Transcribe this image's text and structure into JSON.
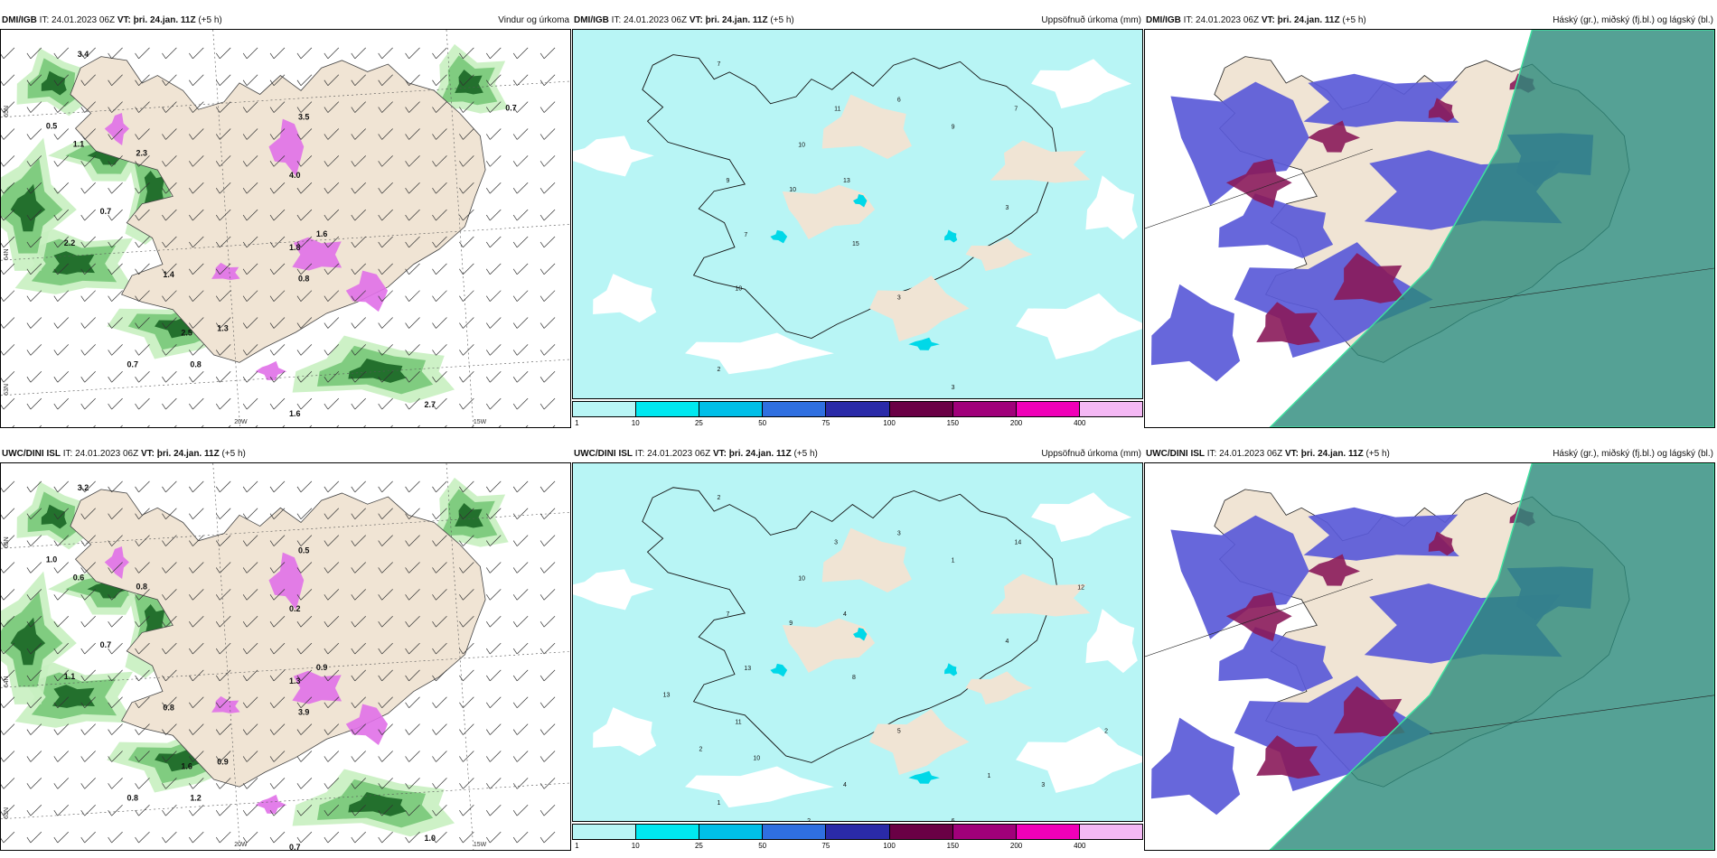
{
  "panels": [
    {
      "id": "p1",
      "model": "DMI/IGB",
      "it_label": "IT:",
      "it_value": "24.01.2023 06Z",
      "vt_label": "VT:",
      "vt_value": "þri. 24.jan. 11Z",
      "lead": "(+5 h)",
      "product": "Vindur og úrkoma",
      "type": "wind",
      "lat_labels": [
        "65N",
        "64N",
        "63N"
      ],
      "lon_labels": [
        "20W",
        "15W"
      ],
      "values": [
        "3.4",
        "0.5",
        "1.1",
        "4.0",
        "3.5",
        "2.3",
        "0.7",
        "2.2",
        "1.4",
        "1.8",
        "1.6",
        "0.8",
        "2.5",
        "0.7",
        "0.8",
        "1.3",
        "2.7",
        "1.6",
        "0.7"
      ]
    },
    {
      "id": "p2",
      "model": "DMI/IGB",
      "it_label": "IT:",
      "it_value": "24.01.2023 06Z",
      "vt_label": "VT:",
      "vt_value": "þri. 24.jan. 11Z",
      "lead": "(+5 h)",
      "product": "Uppsöfnuð úrkoma (mm)",
      "type": "accum",
      "values": [
        "7",
        "11",
        "6",
        "9",
        "10",
        "13",
        "9",
        "10",
        "7",
        "15",
        "10",
        "3",
        "3",
        "2",
        "3",
        "7"
      ]
    },
    {
      "id": "p3",
      "model": "DMI/IGB",
      "it_label": "IT:",
      "it_value": "24.01.2023 06Z",
      "vt_label": "VT:",
      "vt_value": "þri. 24.jan. 11Z",
      "lead": "(+5 h)",
      "product": "Háský (gr.), miðský (fj.bl.) og lágský (bl.)",
      "type": "cloud"
    },
    {
      "id": "p4",
      "model": "UWC/DINI ISL",
      "it_label": "IT:",
      "it_value": "24.01.2023 06Z",
      "vt_label": "VT:",
      "vt_value": "þri. 24.jan. 11Z",
      "lead": "(+5 h)",
      "product": "",
      "type": "wind",
      "lat_labels": [
        "65N",
        "64N",
        "63N"
      ],
      "lon_labels": [
        "20W",
        "15W"
      ],
      "values": [
        "3.2",
        "1.0",
        "0.6",
        "0.2",
        "0.5",
        "0.8",
        "0.7",
        "1.1",
        "0.8",
        "1.3",
        "0.9",
        "3.9",
        "1.6",
        "0.8",
        "1.2",
        "0.9",
        "1.0",
        "0.7"
      ]
    },
    {
      "id": "p5",
      "model": "UWC/DINI ISL",
      "it_label": "IT:",
      "it_value": "24.01.2023 06Z",
      "vt_label": "VT:",
      "vt_value": "þri. 24.jan. 11Z",
      "lead": "(+5 h)",
      "product": "Uppsöfnuð úrkoma (mm)",
      "type": "accum",
      "values": [
        "2",
        "3",
        "3",
        "1",
        "10",
        "4",
        "7",
        "9",
        "13",
        "8",
        "11",
        "4",
        "5",
        "1",
        "6",
        "14",
        "12",
        "13",
        "10",
        "1",
        "3",
        "2",
        "2",
        "2",
        "4"
      ]
    },
    {
      "id": "p6",
      "model": "UWC/DINI ISL",
      "it_label": "IT:",
      "it_value": "24.01.2023 06Z",
      "vt_label": "VT:",
      "vt_value": "þri. 24.jan. 11Z",
      "lead": "(+5 h)",
      "product": "Háský (gr.), miðský (fj.bl.) og lágský (bl.)",
      "type": "cloud"
    }
  ],
  "colorbar": {
    "colors": [
      "#b8f5f5",
      "#00e8f0",
      "#00bfe8",
      "#2f6fe0",
      "#2a2aa8",
      "#6a0045",
      "#a0007a",
      "#f000b8",
      "#f4b8f4"
    ],
    "labels": [
      "1",
      "10",
      "25",
      "50",
      "75",
      "100",
      "150",
      "200",
      "400"
    ]
  },
  "palette": {
    "land": "#f0e4d4",
    "sea_accum": "#b8f5f5",
    "green_light": "#c8f0c0",
    "green_mid": "#78c878",
    "green_dark": "#1e6a28",
    "magenta": "#e070e8",
    "cloud_low": "#5a5ad8",
    "cloud_mid": "#8a1a5a",
    "cloud_high": "#2a8a7a"
  }
}
